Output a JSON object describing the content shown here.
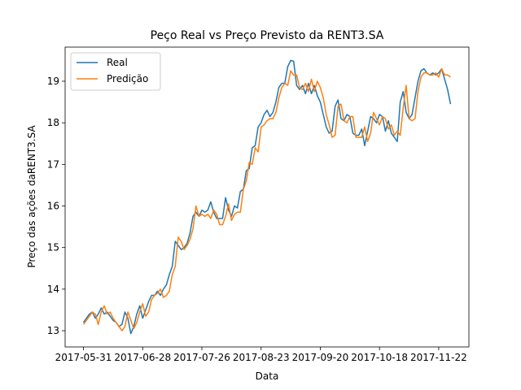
{
  "chart_data": {
    "type": "line",
    "title": "Peço Real vs Preço Previsto da RENT3.SA",
    "x_label": "Data",
    "y_label": "Preço das ações daRENT3.SA",
    "categories": [
      "2017-05-31",
      null,
      null,
      null,
      null,
      null,
      null,
      null,
      null,
      null,
      null,
      null,
      null,
      null,
      null,
      null,
      null,
      null,
      null,
      null,
      "2017-06-28",
      null,
      null,
      null,
      null,
      null,
      null,
      null,
      null,
      null,
      null,
      null,
      null,
      null,
      null,
      null,
      null,
      null,
      null,
      null,
      "2017-07-26",
      null,
      null,
      null,
      null,
      null,
      null,
      null,
      null,
      null,
      null,
      null,
      null,
      null,
      null,
      null,
      null,
      null,
      null,
      null,
      "2017-08-23",
      null,
      null,
      null,
      null,
      null,
      null,
      null,
      null,
      null,
      null,
      null,
      null,
      null,
      null,
      null,
      null,
      null,
      null,
      null,
      "2017-09-20",
      null,
      null,
      null,
      null,
      null,
      null,
      null,
      null,
      null,
      null,
      null,
      null,
      null,
      null,
      null,
      null,
      null,
      null,
      null,
      "2017-10-18",
      null,
      null,
      null,
      null,
      null,
      null,
      null,
      null,
      null,
      null,
      null,
      null,
      null,
      null,
      null,
      null,
      null,
      null,
      null,
      "2017-11-22",
      null,
      null,
      null,
      null
    ],
    "series": [
      {
        "name": "Real",
        "color": "#1f77b4",
        "values": [
          13.2,
          13.3,
          13.4,
          13.45,
          13.3,
          13.4,
          13.55,
          13.4,
          13.45,
          13.35,
          13.25,
          13.2,
          13.1,
          13.15,
          13.45,
          13.3,
          12.93,
          13.1,
          13.4,
          13.6,
          13.3,
          13.5,
          13.7,
          13.85,
          13.85,
          13.95,
          13.85,
          14.0,
          14.1,
          14.35,
          14.55,
          15.15,
          15.05,
          14.95,
          15.0,
          15.1,
          15.35,
          15.75,
          15.85,
          15.75,
          15.9,
          15.85,
          15.9,
          16.1,
          15.85,
          15.7,
          15.7,
          15.7,
          16.2,
          15.9,
          15.75,
          16.0,
          15.95,
          16.35,
          16.4,
          16.85,
          16.9,
          17.4,
          17.45,
          17.9,
          18.0,
          18.2,
          18.3,
          18.15,
          18.25,
          18.5,
          18.85,
          18.95,
          18.95,
          19.35,
          19.5,
          19.48,
          18.9,
          18.8,
          18.9,
          18.7,
          18.95,
          18.7,
          18.9,
          18.65,
          18.5,
          18.2,
          17.9,
          17.75,
          17.8,
          18.4,
          18.55,
          18.1,
          18.05,
          18.2,
          18.15,
          17.75,
          17.7,
          17.7,
          17.85,
          17.45,
          17.8,
          18.15,
          18.1,
          18.0,
          18.2,
          18.15,
          17.8,
          18.05,
          17.75,
          17.65,
          17.55,
          18.5,
          18.75,
          18.25,
          18.1,
          18.2,
          18.6,
          19.0,
          19.25,
          19.3,
          19.2,
          19.15,
          19.2,
          19.15,
          19.2,
          19.3,
          19.05,
          18.8,
          18.45
        ]
      },
      {
        "name": "Predição",
        "color": "#ff7f0e",
        "values": [
          13.15,
          13.25,
          13.35,
          13.45,
          13.4,
          13.15,
          13.45,
          13.6,
          13.4,
          13.45,
          13.3,
          13.2,
          13.1,
          13.0,
          13.1,
          13.45,
          13.25,
          13.05,
          13.2,
          13.45,
          13.65,
          13.35,
          13.45,
          13.75,
          13.85,
          13.9,
          14.0,
          13.8,
          13.85,
          13.95,
          14.35,
          14.55,
          15.25,
          15.15,
          14.95,
          15.05,
          15.2,
          15.45,
          16.0,
          15.75,
          15.8,
          15.75,
          15.8,
          15.7,
          15.9,
          15.8,
          15.55,
          15.55,
          15.75,
          16.05,
          15.65,
          15.8,
          15.85,
          15.85,
          16.4,
          16.6,
          17.05,
          17.0,
          17.4,
          17.3,
          17.9,
          17.95,
          18.05,
          18.1,
          18.1,
          18.25,
          18.6,
          18.85,
          18.95,
          18.9,
          19.25,
          19.15,
          19.15,
          18.85,
          18.8,
          18.95,
          18.75,
          19.05,
          18.75,
          19.0,
          18.85,
          18.6,
          18.2,
          17.95,
          17.65,
          17.7,
          18.4,
          18.45,
          18.05,
          18.0,
          18.15,
          18.15,
          17.65,
          17.65,
          17.65,
          17.9,
          17.55,
          17.75,
          18.25,
          18.1,
          17.95,
          18.15,
          18.1,
          17.85,
          17.95,
          17.7,
          17.8,
          17.7,
          18.35,
          18.9,
          18.1,
          18.05,
          18.1,
          18.75,
          19.1,
          19.2,
          19.2,
          19.15,
          19.15,
          19.2,
          19.1,
          19.3,
          19.15,
          19.15,
          19.1
        ]
      }
    ],
    "ylim": [
      12.61,
      19.82
    ],
    "yticks": [
      13,
      14,
      15,
      16,
      17,
      18,
      19
    ],
    "legend": "upper left"
  }
}
